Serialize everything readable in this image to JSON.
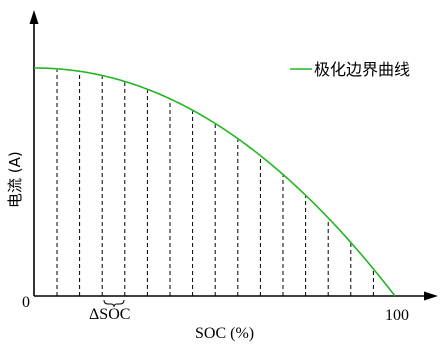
{
  "figure": {
    "origin_label": "0",
    "x_max_label": "100",
    "x_axis_label": "SOC (%)",
    "y_axis_label": "电流 (A)",
    "delta_label": "ΔSOC",
    "legend_label": "极化边界曲线"
  },
  "colors": {
    "curve": "#22b722",
    "axis": "#000000",
    "dash": "#000000"
  },
  "curve_fraction_at_top": 0.0,
  "dashed_line_count": 15
}
